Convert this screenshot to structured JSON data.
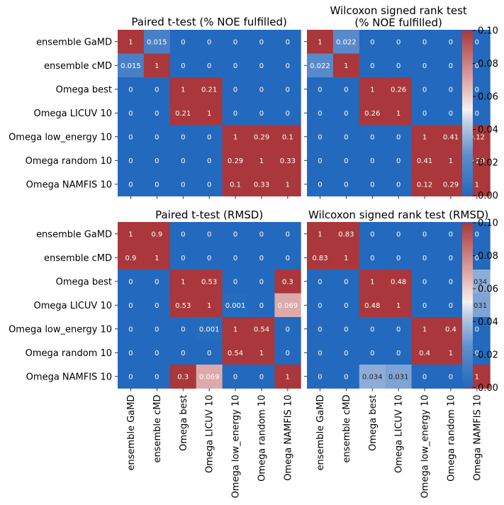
{
  "chart_data": [
    {
      "type": "heatmap",
      "title": "Paired t-test (% NOE fulfilled)",
      "row_labels": [
        "ensemble GaMD",
        "ensemble cMD",
        "Omega best",
        "Omega LICUV 10",
        "Omega low_energy 10",
        "Omega random 10",
        "Omega NAMFIS 10"
      ],
      "col_labels": [],
      "values": [
        [
          1,
          0.015,
          0,
          0,
          0,
          0,
          0
        ],
        [
          0.015,
          1,
          0,
          0,
          0,
          0,
          0
        ],
        [
          0,
          0,
          1,
          0.21,
          0,
          0,
          0
        ],
        [
          0,
          0,
          0.21,
          1,
          0,
          0,
          0
        ],
        [
          0,
          0,
          0,
          0,
          1,
          0.29,
          0.1
        ],
        [
          0,
          0,
          0,
          0,
          0.29,
          1,
          0.33
        ],
        [
          0,
          0,
          0,
          0,
          0.1,
          0.33,
          1
        ]
      ],
      "labels": [
        [
          "1",
          "0.015",
          "0",
          "0",
          "0",
          "0",
          "0"
        ],
        [
          "0.015",
          "1",
          "0",
          "0",
          "0",
          "0",
          "0"
        ],
        [
          "0",
          "0",
          "1",
          "0.21",
          "0",
          "0",
          "0"
        ],
        [
          "0",
          "0",
          "0.21",
          "1",
          "0",
          "0",
          "0"
        ],
        [
          "0",
          "0",
          "0",
          "0",
          "1",
          "0.29",
          "0.1"
        ],
        [
          "0",
          "0",
          "0",
          "0",
          "0.29",
          "1",
          "0.33"
        ],
        [
          "0",
          "0",
          "0",
          "0",
          "0.1",
          "0.33",
          "1"
        ]
      ],
      "vmin": 0,
      "vmax": 0.1,
      "colormap": "vlag"
    },
    {
      "type": "heatmap",
      "title": "Wilcoxon signed rank test\n(% NOE fulfilled)",
      "row_labels": [],
      "col_labels": [],
      "values": [
        [
          1,
          0.022,
          0,
          0,
          0,
          0,
          0
        ],
        [
          0.022,
          1,
          0,
          0,
          0,
          0,
          0
        ],
        [
          0,
          0,
          1,
          0.26,
          0,
          0,
          0
        ],
        [
          0,
          0,
          0.26,
          1,
          0,
          0,
          0
        ],
        [
          0,
          0,
          0,
          0,
          1,
          0.41,
          0.12
        ],
        [
          0,
          0,
          0,
          0,
          0.41,
          1,
          0.29
        ],
        [
          0,
          0,
          0,
          0,
          0.12,
          0.29,
          1
        ]
      ],
      "labels": [
        [
          "1",
          "0.022",
          "0",
          "0",
          "0",
          "0",
          "0"
        ],
        [
          "0.022",
          "1",
          "0",
          "0",
          "0",
          "0",
          "0"
        ],
        [
          "0",
          "0",
          "1",
          "0.26",
          "0",
          "0",
          "0"
        ],
        [
          "0",
          "0",
          "0.26",
          "1",
          "0",
          "0",
          "0"
        ],
        [
          "0",
          "0",
          "0",
          "0",
          "1",
          "0.41",
          "0.12"
        ],
        [
          "0",
          "0",
          "0",
          "0",
          "0.41",
          "1",
          "0.29"
        ],
        [
          "0",
          "0",
          "0",
          "0",
          "0.12",
          "0.29",
          "1"
        ]
      ],
      "vmin": 0,
      "vmax": 0.1,
      "colormap": "vlag",
      "colorbar_ticks": [
        "0.00",
        "0.02",
        "0.04",
        "0.06",
        "0.08",
        "0.10"
      ]
    },
    {
      "type": "heatmap",
      "title": "Paired t-test (RMSD)",
      "row_labels": [
        "ensemble GaMD",
        "ensemble cMD",
        "Omega best",
        "Omega LICUV 10",
        "Omega low_energy 10",
        "Omega random 10",
        "Omega NAMFIS 10"
      ],
      "col_labels": [
        "ensemble GaMD",
        "ensemble cMD",
        "Omega best",
        "Omega LICUV 10",
        "Omega low_energy 10",
        "Omega random 10",
        "Omega NAMFIS 10"
      ],
      "values": [
        [
          1,
          0.9,
          0,
          0,
          0,
          0,
          0
        ],
        [
          0.9,
          1,
          0,
          0,
          0,
          0,
          0
        ],
        [
          0,
          0,
          1,
          0.53,
          0,
          0,
          0.3
        ],
        [
          0,
          0,
          0.53,
          1,
          0.001,
          0,
          0.069
        ],
        [
          0,
          0,
          0,
          0.001,
          1,
          0.54,
          0
        ],
        [
          0,
          0,
          0,
          0,
          0.54,
          1,
          0
        ],
        [
          0,
          0,
          0.3,
          0.069,
          0,
          0,
          1
        ]
      ],
      "labels": [
        [
          "1",
          "0.9",
          "0",
          "0",
          "0",
          "0",
          "0"
        ],
        [
          "0.9",
          "1",
          "0",
          "0",
          "0",
          "0",
          "0"
        ],
        [
          "0",
          "0",
          "1",
          "0.53",
          "0",
          "0",
          "0.3"
        ],
        [
          "0",
          "0",
          "0.53",
          "1",
          "0.001",
          "0",
          "0.069"
        ],
        [
          "0",
          "0",
          "0",
          "0.001",
          "1",
          "0.54",
          "0"
        ],
        [
          "0",
          "0",
          "0",
          "0",
          "0.54",
          "1",
          "0"
        ],
        [
          "0",
          "0",
          "0.3",
          "0.069",
          "0",
          "0",
          "1"
        ]
      ],
      "vmin": 0,
      "vmax": 0.1,
      "colormap": "vlag"
    },
    {
      "type": "heatmap",
      "title": "Wilcoxon signed rank test (RMSD)",
      "row_labels": [],
      "col_labels": [
        "ensemble GaMD",
        "ensemble cMD",
        "Omega best",
        "Omega LICUV 10",
        "Omega low_energy 10",
        "Omega random 10",
        "Omega NAMFIS 10"
      ],
      "values": [
        [
          1,
          0.83,
          0,
          0,
          0,
          0,
          0
        ],
        [
          0.83,
          1,
          0,
          0,
          0,
          0,
          0
        ],
        [
          0,
          0,
          1,
          0.48,
          0,
          0,
          0.034
        ],
        [
          0,
          0,
          0.48,
          1,
          0,
          0,
          0.031
        ],
        [
          0,
          0,
          0,
          0,
          1,
          0.4,
          0
        ],
        [
          0,
          0,
          0,
          0,
          0.4,
          1,
          0
        ],
        [
          0,
          0,
          0.034,
          0.031,
          0,
          0,
          1
        ]
      ],
      "labels": [
        [
          "1",
          "0.83",
          "0",
          "0",
          "0",
          "0",
          "0"
        ],
        [
          "0.83",
          "1",
          "0",
          "0",
          "0",
          "0",
          "0"
        ],
        [
          "0",
          "0",
          "1",
          "0.48",
          "0",
          "0",
          "0.034"
        ],
        [
          "0",
          "0",
          "0.48",
          "1",
          "0",
          "0",
          "0.031"
        ],
        [
          "0",
          "0",
          "0",
          "0",
          "1",
          "0.4",
          "0"
        ],
        [
          "0",
          "0",
          "0",
          "0",
          "0.4",
          "1",
          "0"
        ],
        [
          "0",
          "0",
          "0.034",
          "0.031",
          "0",
          "0",
          "1"
        ]
      ],
      "vmin": 0,
      "vmax": 0.1,
      "colormap": "vlag",
      "colorbar_ticks": [
        "0.00",
        "0.02",
        "0.04",
        "0.06",
        "0.08",
        "0.10"
      ]
    }
  ]
}
